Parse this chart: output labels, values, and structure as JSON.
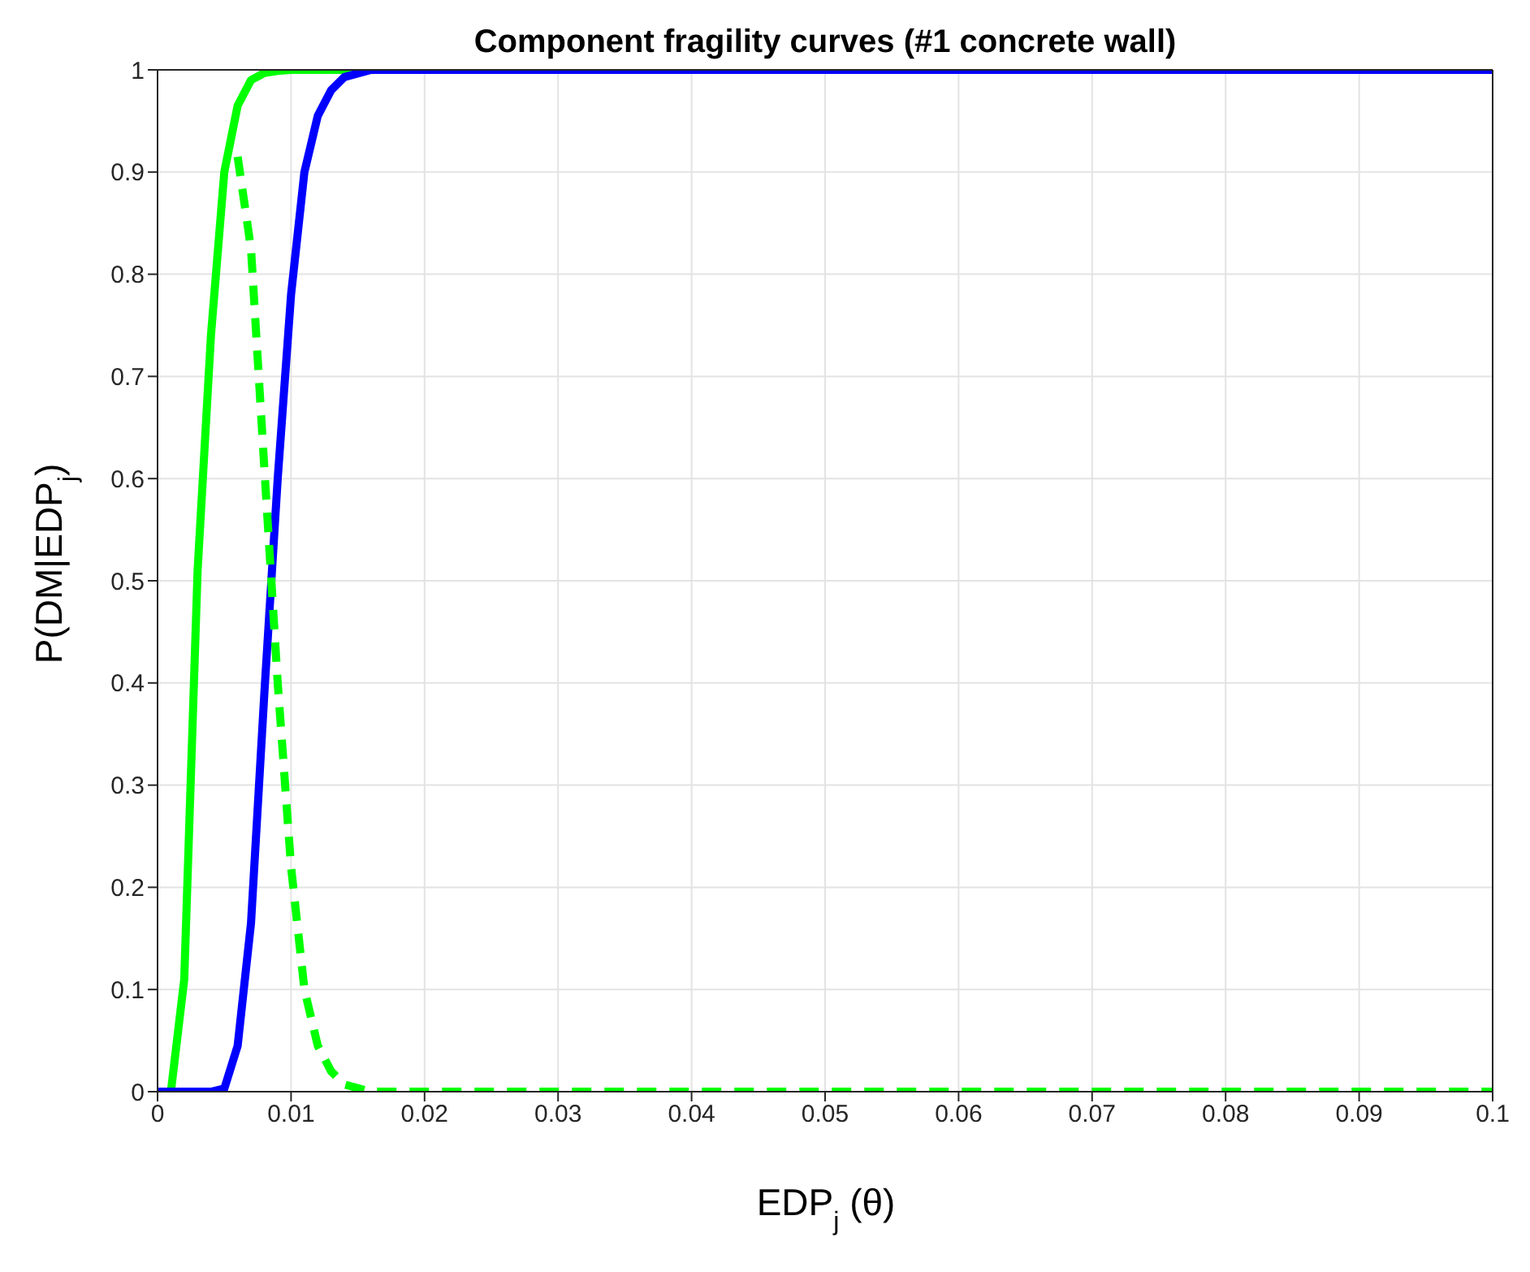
{
  "chart_data": {
    "type": "line",
    "title": "Component fragility curves (#1 concrete wall)",
    "xlabel": "EDP$_{j}$ (θ)",
    "ylabel": "P(DM|EDP$_{j}$)",
    "xlim": [
      0,
      0.1
    ],
    "xticks": [
      0,
      0.01,
      0.02,
      0.03,
      0.04,
      0.05,
      0.06,
      0.07,
      0.08,
      0.09,
      0.1
    ],
    "ylim": [
      0,
      1
    ],
    "yticks": [
      0,
      0.1,
      0.2,
      0.3,
      0.4,
      0.5,
      0.6,
      0.7,
      0.8,
      0.9,
      1
    ],
    "grid": true,
    "legend": false,
    "marker": "none",
    "series": [
      {
        "color": "#00ff00",
        "line_style": "solid",
        "x": [
          0,
          0.001,
          0.002,
          0.003,
          0.004,
          0.005,
          0.006,
          0.007,
          0.008,
          0.009,
          0.01,
          0.012,
          0.015
        ],
        "values": [
          0,
          0,
          0.11,
          0.51,
          0.74,
          0.9,
          0.965,
          0.99,
          0.997,
          0.999,
          1,
          1,
          1
        ]
      },
      {
        "color": "#0000ff",
        "line_style": "solid",
        "x": [
          0,
          0.001,
          0.002,
          0.003,
          0.004,
          0.005,
          0.006,
          0.007,
          0.008,
          0.009,
          0.01,
          0.011,
          0.012,
          0.013,
          0.014,
          0.016,
          0.02,
          0.1
        ],
        "values": [
          0,
          0,
          0,
          0,
          0,
          0.003,
          0.045,
          0.165,
          0.39,
          0.6,
          0.78,
          0.9,
          0.955,
          0.98,
          0.993,
          1,
          1,
          1
        ]
      },
      {
        "color": "#00ff00",
        "line_style": "dashed",
        "x": [
          0.006,
          0.007,
          0.008,
          0.009,
          0.01,
          0.011,
          0.012,
          0.013,
          0.014,
          0.016,
          0.02,
          0.1
        ],
        "values": [
          0.915,
          0.825,
          0.61,
          0.4,
          0.22,
          0.1,
          0.045,
          0.02,
          0.007,
          0,
          0,
          0
        ]
      }
    ]
  }
}
